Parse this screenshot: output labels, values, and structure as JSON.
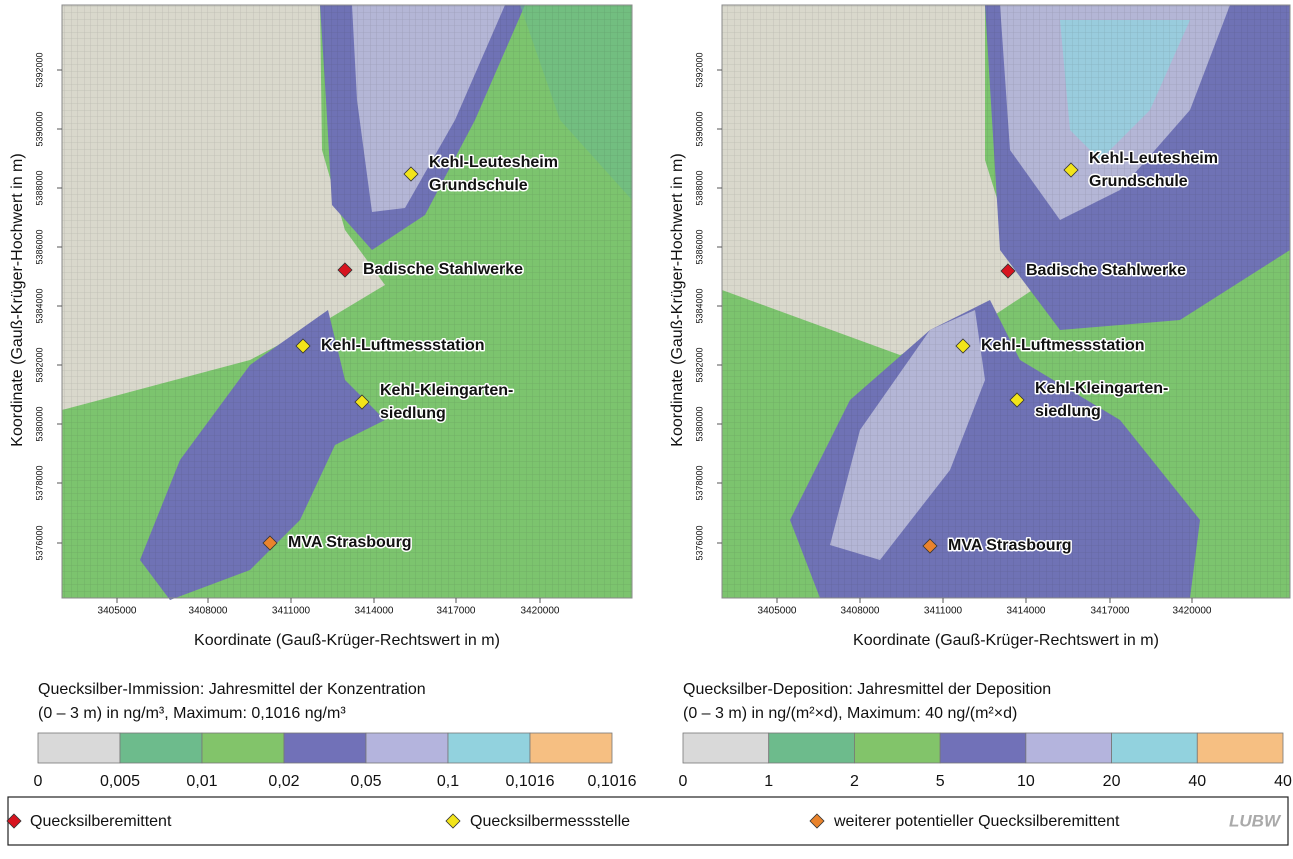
{
  "panels": [
    {
      "y_label": "Koordinate (Gauß-Krüger-Hochwert in m)",
      "x_label": "Koordinate (Gauß-Krüger-Rechtswert in m)",
      "xticks": [
        "3405000",
        "3408000",
        "3411000",
        "3414000",
        "3417000",
        "3420000"
      ],
      "yticks": [
        "5376000",
        "5378000",
        "5380000",
        "5382000",
        "5384000",
        "5386000",
        "5388000",
        "5390000",
        "5392000"
      ],
      "stations": [
        [
          "Kehl-Leutesheim",
          "Grundschule"
        ],
        [
          "Badische Stahlwerke"
        ],
        [
          "Kehl-Luftmessstation"
        ],
        [
          "Kehl-Kleingarten-",
          "siedlung"
        ],
        [
          "MVA Strasbourg"
        ]
      ],
      "legend_title": [
        "Quecksilber-Immission: Jahresmittel der Konzentration",
        "(0 – 3 m) in ng/m³, Maximum: 0,1016 ng/m³"
      ],
      "scale_labels": [
        "0",
        "0,005",
        "0,01",
        "0,02",
        "0,05",
        "0,1",
        "0,1016",
        "0,1016"
      ]
    },
    {
      "y_label": "Koordinate (Gauß-Krüger-Hochwert in m)",
      "x_label": "Koordinate (Gauß-Krüger-Rechtswert in m)",
      "xticks": [
        "3405000",
        "3408000",
        "3411000",
        "3414000",
        "3417000",
        "3420000"
      ],
      "yticks": [
        "5376000",
        "5378000",
        "5380000",
        "5382000",
        "5384000",
        "5386000",
        "5388000",
        "5390000",
        "5392000"
      ],
      "stations": [
        [
          "Kehl-Leutesheim",
          "Grundschule"
        ],
        [
          "Badische Stahlwerke"
        ],
        [
          "Kehl-Luftmessstation"
        ],
        [
          "Kehl-Kleingarten-",
          "siedlung"
        ],
        [
          "MVA Strasbourg"
        ]
      ],
      "legend_title": [
        "Quecksilber-Deposition: Jahresmittel der Deposition",
        "(0 – 3 m) in ng/(m²×d), Maximum: 40 ng/(m²×d)"
      ],
      "scale_labels": [
        "0",
        "1",
        "2",
        "5",
        "10",
        "20",
        "40",
        "40"
      ]
    }
  ],
  "scale_colors": [
    "#d9d9d9",
    "#6dbb8c",
    "#82c46a",
    "#7171b8",
    "#b4b4dd",
    "#92d2de",
    "#f6bf82"
  ],
  "legend": [
    "Quecksilberemittent",
    "Quecksilbermessstelle",
    "weiterer potentieller Quecksilberemittent"
  ],
  "logo": "LUBW"
}
